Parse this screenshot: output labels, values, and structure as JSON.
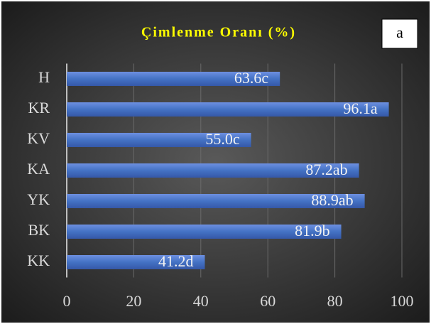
{
  "chart_data": {
    "type": "bar",
    "orientation": "horizontal",
    "title": "Çimlenme Oranı (%)",
    "annotation": "a",
    "categories": [
      "H",
      "KR",
      "KV",
      "KA",
      "YK",
      "BK",
      "KK"
    ],
    "values": [
      63.6,
      96.1,
      55.0,
      87.2,
      88.9,
      81.9,
      41.2
    ],
    "value_labels": [
      "63.6c",
      "96.1a",
      "55.0c",
      "87.2ab",
      "88.9ab",
      "81.9b",
      "41.2d"
    ],
    "color": "#4472c4",
    "xlim": [
      0,
      100
    ],
    "xticks": [
      0,
      20,
      40,
      60,
      80,
      100
    ],
    "grid": true
  }
}
